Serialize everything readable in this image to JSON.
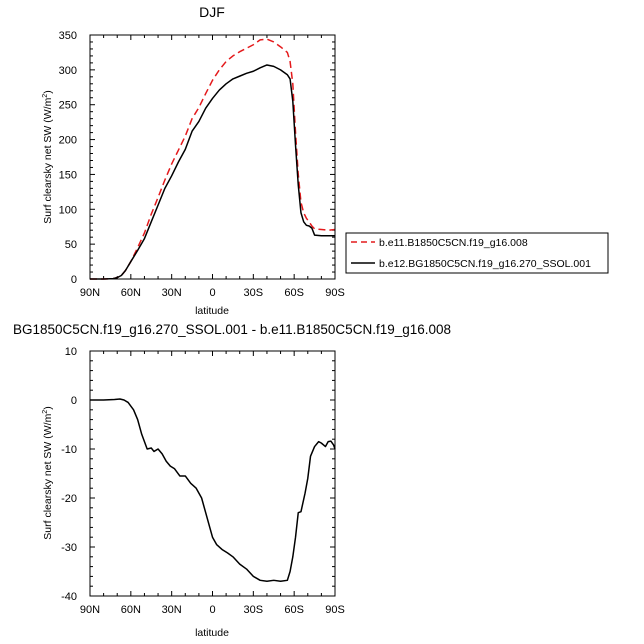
{
  "chart_data": [
    {
      "type": "line",
      "title": "DJF",
      "xlabel": "latitude",
      "ylabel_text": "Surf clearsky net SW (W/m",
      "ylabel_sup": "2",
      "ylabel_close": ")",
      "xlim": [
        90,
        -90
      ],
      "ylim": [
        0,
        350
      ],
      "xticks": [
        90,
        60,
        30,
        0,
        -30,
        -60,
        -90
      ],
      "xtick_labels": [
        "90N",
        "60N",
        "30N",
        "0",
        "30S",
        "60S",
        "90S"
      ],
      "yticks": [
        0,
        50,
        100,
        150,
        200,
        250,
        300,
        350
      ],
      "ytick_labels": [
        "0",
        "50",
        "100",
        "150",
        "200",
        "250",
        "300",
        "350"
      ],
      "legend_position": "right",
      "series": [
        {
          "name": "b.e11.B1850C5CN.f19_g16.008",
          "color": "#e41a1c",
          "dash": "dashed",
          "x": [
            90,
            80,
            73,
            70,
            67,
            64,
            60,
            55,
            50,
            45,
            40,
            35,
            30,
            25,
            20,
            15,
            10,
            5,
            0,
            -5,
            -10,
            -15,
            -20,
            -25,
            -30,
            -35,
            -40,
            -45,
            -50,
            -55,
            -57,
            -59,
            -61,
            -63,
            -65,
            -67,
            -69,
            -71,
            -73,
            -75,
            -80,
            -85,
            -90
          ],
          "y": [
            0,
            0,
            0.5,
            2,
            5,
            12,
            25,
            45,
            66,
            93,
            117,
            142,
            165,
            185,
            205,
            230,
            246,
            266,
            285,
            300,
            312,
            320,
            326,
            331,
            336,
            343,
            344,
            340,
            333,
            325,
            312,
            280,
            210,
            150,
            110,
            95,
            87,
            82,
            76,
            72,
            71,
            70,
            71
          ]
        },
        {
          "name": "b.e12.BG1850C5CN.f19_g16.270_SSOL.001",
          "color": "#000000",
          "dash": "solid",
          "x": [
            90,
            80,
            73,
            70,
            67,
            64,
            60,
            55,
            50,
            45,
            40,
            35,
            30,
            25,
            20,
            15,
            10,
            5,
            0,
            -5,
            -10,
            -15,
            -20,
            -25,
            -30,
            -35,
            -40,
            -45,
            -50,
            -55,
            -57,
            -59,
            -61,
            -63,
            -65,
            -67,
            -69,
            -71,
            -73,
            -75,
            -80,
            -85,
            -90
          ],
          "y": [
            0,
            0,
            0.5,
            2,
            5,
            12,
            25,
            41,
            58,
            82,
            106,
            130,
            148,
            168,
            186,
            212,
            226,
            245,
            259,
            271,
            280,
            287,
            291,
            295,
            298,
            303,
            307,
            305,
            300,
            293,
            287,
            255,
            192,
            135,
            95,
            82,
            77,
            76,
            73,
            63,
            62,
            62,
            62
          ]
        }
      ]
    },
    {
      "type": "line",
      "title": "BG1850C5CN.f19_g16.270_SSOL.001 - b.e11.B1850C5CN.f19_g16.008",
      "xlabel": "latitude",
      "ylabel_text": "Surf clearsky net SW (W/m",
      "ylabel_sup": "2",
      "ylabel_close": ")",
      "xlim": [
        90,
        -90
      ],
      "ylim": [
        -40,
        10
      ],
      "xticks": [
        90,
        60,
        30,
        0,
        -30,
        -60,
        -90
      ],
      "xtick_labels": [
        "90N",
        "60N",
        "30N",
        "0",
        "30S",
        "60S",
        "90S"
      ],
      "yticks": [
        10,
        0,
        -10,
        -20,
        -30,
        -40
      ],
      "ytick_labels": [
        "10",
        "0",
        "-10",
        "-20",
        "-30",
        "-40"
      ],
      "series": [
        {
          "name": "",
          "color": "#000000",
          "dash": "solid",
          "x": [
            90,
            80,
            72,
            68,
            65,
            62,
            58,
            55,
            52,
            48,
            45,
            43,
            40,
            37,
            34,
            31,
            28,
            24,
            20,
            16,
            12,
            8,
            5,
            2,
            0,
            -3,
            -7,
            -11,
            -15,
            -20,
            -25,
            -30,
            -35,
            -40,
            -45,
            -50,
            -55,
            -57,
            -59,
            -61,
            -63,
            -65,
            -68,
            -70,
            -72,
            -75,
            -78,
            -80,
            -83,
            -85,
            -87,
            -89,
            -90
          ],
          "y": [
            0,
            0,
            0.1,
            0.2,
            0,
            -0.5,
            -2,
            -4,
            -7,
            -10,
            -9.8,
            -10.5,
            -10,
            -11,
            -12.5,
            -13.5,
            -14,
            -15.5,
            -15.5,
            -17,
            -18,
            -20,
            -23,
            -26,
            -28,
            -29.5,
            -30.5,
            -31.2,
            -32,
            -33.5,
            -34.5,
            -36,
            -36.8,
            -37,
            -36.8,
            -37,
            -36.8,
            -35,
            -32,
            -28,
            -23,
            -22.8,
            -19,
            -16,
            -11.5,
            -9.5,
            -8.5,
            -8.8,
            -9.5,
            -8.5,
            -8.4,
            -9.2,
            -10
          ]
        }
      ]
    }
  ]
}
